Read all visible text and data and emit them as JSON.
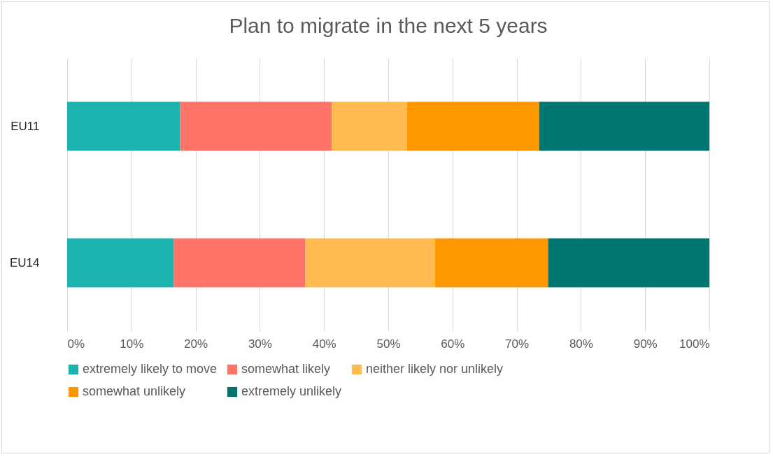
{
  "chart_data": {
    "type": "bar",
    "title": "Plan to migrate in the next 5 years",
    "orientation": "horizontal",
    "stacked": true,
    "categories": [
      "EU11",
      "EU14"
    ],
    "series": [
      {
        "name": "extremely likely to move",
        "color": "#1bb3ad",
        "values": [
          17.6,
          16.6
        ]
      },
      {
        "name": "somewhat likely",
        "color": "#ff7368",
        "values": [
          23.6,
          20.5
        ]
      },
      {
        "name": "neither likely nor unlikely",
        "color": "#ffbb4f",
        "values": [
          11.7,
          20.2
        ]
      },
      {
        "name": "somewhat unlikely",
        "color": "#ff9800",
        "values": [
          20.6,
          17.6
        ]
      },
      {
        "name": "extremely unlikely",
        "color": "#007672",
        "values": [
          26.5,
          25.1
        ]
      }
    ],
    "xlim": [
      0,
      100
    ],
    "xticks": [
      {
        "value": 0,
        "label": "0%"
      },
      {
        "value": 10,
        "label": "10%"
      },
      {
        "value": 20,
        "label": "20%"
      },
      {
        "value": 30,
        "label": "30%"
      },
      {
        "value": 40,
        "label": "40%"
      },
      {
        "value": 50,
        "label": "50%"
      },
      {
        "value": 60,
        "label": "60%"
      },
      {
        "value": 70,
        "label": "70%"
      },
      {
        "value": 80,
        "label": "80%"
      },
      {
        "value": 90,
        "label": "90%"
      },
      {
        "value": 100,
        "label": "100%"
      }
    ],
    "grid": "x",
    "legend": "bottom"
  }
}
